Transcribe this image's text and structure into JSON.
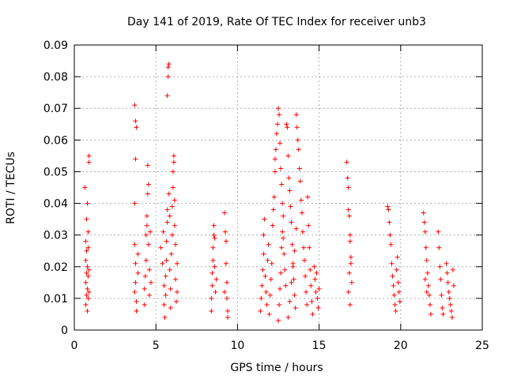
{
  "chart_data": {
    "type": "scatter",
    "title": "Day 141 of 2019, Rate Of TEC Index for receiver unb3",
    "xlabel": "GPS time / hours",
    "ylabel": "ROTI / TECUs",
    "xlim": [
      0,
      25
    ],
    "ylim": [
      0,
      0.09
    ],
    "xticks": [
      "0",
      "5",
      "10",
      "15",
      "20",
      "25"
    ],
    "yticks": [
      "0",
      "0.01",
      "0.02",
      "0.03",
      "0.04",
      "0.05",
      "0.06",
      "0.07",
      "0.08",
      "0.09"
    ],
    "grid": true,
    "marker": "+",
    "color": "#ff0000",
    "series": [
      {
        "values": [
          [
            0.7,
            0.008
          ],
          [
            0.7,
            0.015
          ],
          [
            0.7,
            0.022
          ],
          [
            0.7,
            0.028
          ],
          [
            0.65,
            0.045
          ],
          [
            0.75,
            0.011
          ],
          [
            0.75,
            0.018
          ],
          [
            0.75,
            0.025
          ],
          [
            0.75,
            0.035
          ],
          [
            0.8,
            0.006
          ],
          [
            0.8,
            0.013
          ],
          [
            0.8,
            0.02
          ],
          [
            0.8,
            0.04
          ],
          [
            0.85,
            0.01
          ],
          [
            0.85,
            0.017
          ],
          [
            0.85,
            0.026
          ],
          [
            0.85,
            0.031
          ],
          [
            0.9,
            0.053
          ],
          [
            0.9,
            0.055
          ],
          [
            0.9,
            0.012
          ],
          [
            0.9,
            0.019
          ],
          [
            3.7,
            0.071
          ],
          [
            3.75,
            0.066
          ],
          [
            3.8,
            0.064
          ],
          [
            3.75,
            0.054
          ],
          [
            3.7,
            0.04
          ],
          [
            3.7,
            0.027
          ],
          [
            3.75,
            0.021
          ],
          [
            3.75,
            0.015
          ],
          [
            3.7,
            0.012
          ],
          [
            3.8,
            0.009
          ],
          [
            3.8,
            0.006
          ],
          [
            3.9,
            0.018
          ],
          [
            3.9,
            0.024
          ],
          [
            4.3,
            0.008
          ],
          [
            4.3,
            0.013
          ],
          [
            4.35,
            0.017
          ],
          [
            4.4,
            0.022
          ],
          [
            4.4,
            0.03
          ],
          [
            4.45,
            0.033
          ],
          [
            4.45,
            0.036
          ],
          [
            4.5,
            0.043
          ],
          [
            4.5,
            0.052
          ],
          [
            4.55,
            0.046
          ],
          [
            4.55,
            0.027
          ],
          [
            4.6,
            0.019
          ],
          [
            4.6,
            0.011
          ],
          [
            4.65,
            0.031
          ],
          [
            4.7,
            0.015
          ],
          [
            5.3,
            0.026
          ],
          [
            5.4,
            0.021
          ],
          [
            5.45,
            0.031
          ],
          [
            5.5,
            0.014
          ],
          [
            5.5,
            0.008
          ],
          [
            5.55,
            0.004
          ],
          [
            5.6,
            0.011
          ],
          [
            5.6,
            0.017
          ],
          [
            5.65,
            0.022
          ],
          [
            5.65,
            0.028
          ],
          [
            5.7,
            0.034
          ],
          [
            5.7,
            0.038
          ],
          [
            5.7,
            0.074
          ],
          [
            5.75,
            0.08
          ],
          [
            5.75,
            0.083
          ],
          [
            5.8,
            0.084
          ],
          [
            5.8,
            0.043
          ],
          [
            5.85,
            0.036
          ],
          [
            5.85,
            0.019
          ],
          [
            5.9,
            0.013
          ],
          [
            5.9,
            0.007
          ],
          [
            5.95,
            0.024
          ],
          [
            6.0,
            0.03
          ],
          [
            6.0,
            0.039
          ],
          [
            6.05,
            0.045
          ],
          [
            6.05,
            0.05
          ],
          [
            6.1,
            0.053
          ],
          [
            6.1,
            0.055
          ],
          [
            6.15,
            0.041
          ],
          [
            6.15,
            0.033
          ],
          [
            6.2,
            0.027
          ],
          [
            6.2,
            0.016
          ],
          [
            6.25,
            0.009
          ],
          [
            6.3,
            0.021
          ],
          [
            6.3,
            0.012
          ],
          [
            8.4,
            0.006
          ],
          [
            8.4,
            0.01
          ],
          [
            8.45,
            0.014
          ],
          [
            8.45,
            0.018
          ],
          [
            8.5,
            0.022
          ],
          [
            8.5,
            0.026
          ],
          [
            8.55,
            0.03
          ],
          [
            8.55,
            0.033
          ],
          [
            8.6,
            0.029
          ],
          [
            8.6,
            0.02
          ],
          [
            8.65,
            0.012
          ],
          [
            8.7,
            0.016
          ],
          [
            9.2,
            0.037
          ],
          [
            9.25,
            0.031
          ],
          [
            9.3,
            0.028
          ],
          [
            9.3,
            0.021
          ],
          [
            9.35,
            0.015
          ],
          [
            9.35,
            0.01
          ],
          [
            9.4,
            0.006
          ],
          [
            9.4,
            0.004
          ],
          [
            9.2,
            0.012
          ],
          [
            11.4,
            0.006
          ],
          [
            11.45,
            0.01
          ],
          [
            11.5,
            0.014
          ],
          [
            11.55,
            0.019
          ],
          [
            11.6,
            0.024
          ],
          [
            11.6,
            0.03
          ],
          [
            11.65,
            0.035
          ],
          [
            11.7,
            0.017
          ],
          [
            11.75,
            0.012
          ],
          [
            11.8,
            0.008
          ],
          [
            11.85,
            0.022
          ],
          [
            11.9,
            0.027
          ],
          [
            11.95,
            0.005
          ],
          [
            12.0,
            0.011
          ],
          [
            12.05,
            0.016
          ],
          [
            12.1,
            0.021
          ],
          [
            12.15,
            0.033
          ],
          [
            12.2,
            0.038
          ],
          [
            12.25,
            0.042
          ],
          [
            12.3,
            0.05
          ],
          [
            12.3,
            0.054
          ],
          [
            12.35,
            0.057
          ],
          [
            12.4,
            0.062
          ],
          [
            12.45,
            0.065
          ],
          [
            12.5,
            0.07
          ],
          [
            12.55,
            0.068
          ],
          [
            12.6,
            0.059
          ],
          [
            12.65,
            0.051
          ],
          [
            12.7,
            0.046
          ],
          [
            12.75,
            0.04
          ],
          [
            12.8,
            0.029
          ],
          [
            12.85,
            0.024
          ],
          [
            12.9,
            0.019
          ],
          [
            12.95,
            0.014
          ],
          [
            12.5,
            0.003
          ],
          [
            12.55,
            0.008
          ],
          [
            12.6,
            0.013
          ],
          [
            12.65,
            0.018
          ],
          [
            12.7,
            0.026
          ],
          [
            12.75,
            0.031
          ],
          [
            12.8,
            0.036
          ],
          [
            13.0,
            0.065
          ],
          [
            13.05,
            0.064
          ],
          [
            13.1,
            0.055
          ],
          [
            13.15,
            0.048
          ],
          [
            13.2,
            0.044
          ],
          [
            13.25,
            0.039
          ],
          [
            13.3,
            0.034
          ],
          [
            13.35,
            0.027
          ],
          [
            13.4,
            0.021
          ],
          [
            13.45,
            0.016
          ],
          [
            13.5,
            0.011
          ],
          [
            13.55,
            0.007
          ],
          [
            13.1,
            0.004
          ],
          [
            13.2,
            0.009
          ],
          [
            13.3,
            0.015
          ],
          [
            13.4,
            0.02
          ],
          [
            13.5,
            0.025
          ],
          [
            13.6,
            0.032
          ],
          [
            13.6,
            0.068
          ],
          [
            13.65,
            0.064
          ],
          [
            13.7,
            0.06
          ],
          [
            13.75,
            0.057
          ],
          [
            13.8,
            0.051
          ],
          [
            13.85,
            0.047
          ],
          [
            13.9,
            0.041
          ],
          [
            13.95,
            0.037
          ],
          [
            14.0,
            0.031
          ],
          [
            14.05,
            0.026
          ],
          [
            14.1,
            0.022
          ],
          [
            14.15,
            0.017
          ],
          [
            14.2,
            0.012
          ],
          [
            14.25,
            0.008
          ],
          [
            14.3,
            0.042
          ],
          [
            14.35,
            0.033
          ],
          [
            14.4,
            0.026
          ],
          [
            14.45,
            0.019
          ],
          [
            14.5,
            0.014
          ],
          [
            14.55,
            0.009
          ],
          [
            14.6,
            0.005
          ],
          [
            14.7,
            0.02
          ],
          [
            14.75,
            0.016
          ],
          [
            14.8,
            0.012
          ],
          [
            14.85,
            0.018
          ],
          [
            14.9,
            0.01
          ],
          [
            14.95,
            0.007
          ],
          [
            15.0,
            0.013
          ],
          [
            16.7,
            0.053
          ],
          [
            16.75,
            0.048
          ],
          [
            16.8,
            0.045
          ],
          [
            16.8,
            0.038
          ],
          [
            16.85,
            0.036
          ],
          [
            16.9,
            0.03
          ],
          [
            16.9,
            0.028
          ],
          [
            16.95,
            0.023
          ],
          [
            16.95,
            0.021
          ],
          [
            16.85,
            0.018
          ],
          [
            17.0,
            0.015
          ],
          [
            16.8,
            0.012
          ],
          [
            16.9,
            0.008
          ],
          [
            19.2,
            0.039
          ],
          [
            19.25,
            0.038
          ],
          [
            19.3,
            0.034
          ],
          [
            19.35,
            0.03
          ],
          [
            19.4,
            0.027
          ],
          [
            19.45,
            0.021
          ],
          [
            19.5,
            0.017
          ],
          [
            19.55,
            0.014
          ],
          [
            19.6,
            0.011
          ],
          [
            19.65,
            0.008
          ],
          [
            19.7,
            0.006
          ],
          [
            19.75,
            0.019
          ],
          [
            19.8,
            0.023
          ],
          [
            19.85,
            0.015
          ],
          [
            19.9,
            0.012
          ],
          [
            19.95,
            0.009
          ],
          [
            21.4,
            0.037
          ],
          [
            21.45,
            0.034
          ],
          [
            21.5,
            0.031
          ],
          [
            21.55,
            0.026
          ],
          [
            21.6,
            0.022
          ],
          [
            21.65,
            0.018
          ],
          [
            21.7,
            0.014
          ],
          [
            21.75,
            0.011
          ],
          [
            21.8,
            0.008
          ],
          [
            21.85,
            0.005
          ],
          [
            21.5,
            0.016
          ],
          [
            21.6,
            0.012
          ],
          [
            22.3,
            0.031
          ],
          [
            22.35,
            0.026
          ],
          [
            22.4,
            0.02
          ],
          [
            22.45,
            0.016
          ],
          [
            22.5,
            0.011
          ],
          [
            22.55,
            0.007
          ],
          [
            22.6,
            0.005
          ],
          [
            22.8,
            0.021
          ],
          [
            22.85,
            0.018
          ],
          [
            22.9,
            0.015
          ],
          [
            22.95,
            0.012
          ],
          [
            23.0,
            0.01
          ],
          [
            23.05,
            0.008
          ],
          [
            23.1,
            0.006
          ],
          [
            23.15,
            0.004
          ],
          [
            23.2,
            0.019
          ],
          [
            23.25,
            0.014
          ]
        ]
      }
    ]
  }
}
